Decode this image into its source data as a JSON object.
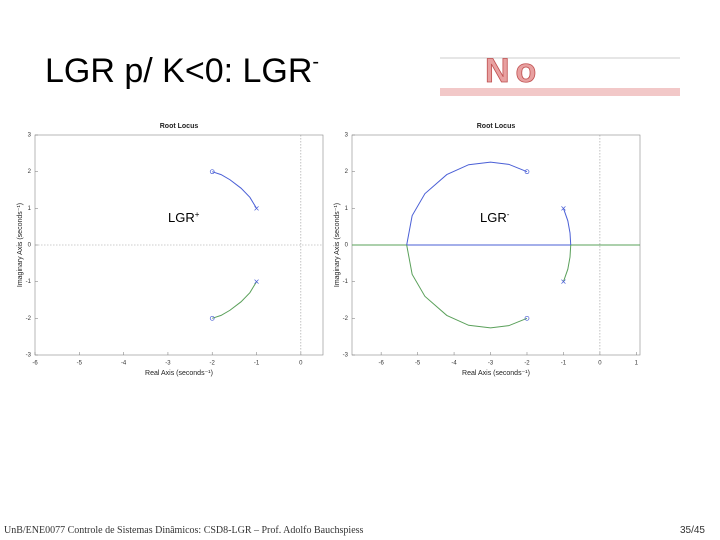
{
  "slide": {
    "title": "LGR p/ K<0: LGR",
    "title_sup": "-",
    "image_placeholder": "No",
    "footer": "UnB/ENE0077 Controle de Sistemas Dinâmicos: CSD8-LGR – Prof. Adolfo Bauchspiess",
    "page": "35/45"
  },
  "chart_data": [
    {
      "type": "line",
      "title": "Root Locus",
      "xlabel": "Real Axis (seconds⁻¹)",
      "ylabel": "Imaginary Axis (seconds⁻¹)",
      "annotation": "LGR",
      "annotation_sup": "+",
      "xlim": [
        -6,
        0.5
      ],
      "xticks": [
        -6,
        -5,
        -4,
        -3,
        -2,
        -1,
        0
      ],
      "ylim": [
        -3,
        3
      ],
      "yticks": [
        -3,
        -2,
        -1,
        0,
        1,
        2,
        3
      ],
      "zero_lines": true,
      "series": [
        {
          "color": "#4a5fd6",
          "x": [
            -1,
            -1.15,
            -1.35,
            -1.6,
            -1.8,
            -2
          ],
          "y": [
            1,
            1.3,
            1.55,
            1.78,
            1.92,
            2
          ]
        },
        {
          "color": "#5aa05a",
          "x": [
            -1,
            -1.15,
            -1.35,
            -1.6,
            -1.8,
            -2
          ],
          "y": [
            -1,
            -1.3,
            -1.55,
            -1.78,
            -1.92,
            -2
          ]
        }
      ],
      "markers": [
        {
          "shape": "x",
          "color": "#4a5fd6",
          "x": [
            -1,
            -1
          ],
          "y": [
            1,
            -1
          ]
        },
        {
          "shape": "o",
          "color": "#4a5fd6",
          "x": [
            -2,
            -2
          ],
          "y": [
            2,
            -2
          ]
        }
      ]
    },
    {
      "type": "line",
      "title": "Root Locus",
      "xlabel": "Real Axis (seconds⁻¹)",
      "ylabel": "Imaginary Axis (seconds⁻¹)",
      "annotation": "LGR",
      "annotation_sup": "-",
      "xlim": [
        -6.8,
        1.1
      ],
      "xticks": [
        -6,
        -5,
        -4,
        -3,
        -2,
        -1,
        0,
        1
      ],
      "ylim": [
        -3,
        3
      ],
      "yticks": [
        -3,
        -2,
        -1,
        0,
        1,
        2,
        3
      ],
      "zero_lines": true,
      "series": [
        {
          "color": "#5aa05a",
          "x": [
            -6.8,
            1.1
          ],
          "y": [
            0,
            0
          ]
        },
        {
          "color": "#4a5fd6",
          "x": [
            -5.3,
            -0.8
          ],
          "y": [
            0,
            0
          ]
        },
        {
          "color": "#4a5fd6",
          "x": [
            -2,
            -2.5,
            -3,
            -3.6,
            -4.2,
            -4.8,
            -5.15,
            -5.3
          ],
          "y": [
            2,
            2.2,
            2.26,
            2.19,
            1.92,
            1.4,
            0.8,
            0
          ]
        },
        {
          "color": "#5aa05a",
          "x": [
            -2,
            -2.5,
            -3,
            -3.6,
            -4.2,
            -4.8,
            -5.15,
            -5.3
          ],
          "y": [
            -2,
            -2.2,
            -2.26,
            -2.19,
            -1.92,
            -1.4,
            -0.8,
            0
          ]
        },
        {
          "color": "#4a5fd6",
          "x": [
            -1,
            -0.88,
            -0.82,
            -0.8
          ],
          "y": [
            1,
            0.66,
            0.33,
            0
          ]
        },
        {
          "color": "#5aa05a",
          "x": [
            -1,
            -0.88,
            -0.82,
            -0.8
          ],
          "y": [
            -1,
            -0.66,
            -0.33,
            0
          ]
        }
      ],
      "markers": [
        {
          "shape": "x",
          "color": "#4a5fd6",
          "x": [
            -1,
            -1
          ],
          "y": [
            1,
            -1
          ]
        },
        {
          "shape": "o",
          "color": "#4a5fd6",
          "x": [
            -2,
            -2
          ],
          "y": [
            2,
            -2
          ]
        }
      ]
    }
  ]
}
